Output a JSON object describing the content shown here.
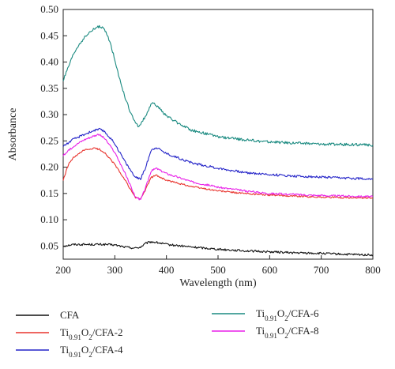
{
  "chart_data": {
    "type": "line",
    "title": "",
    "xlabel": "Wavelength (nm)",
    "ylabel": "Absorbance",
    "xlim": [
      200,
      800
    ],
    "ylim": [
      0.025,
      0.5
    ],
    "xticks": [
      "200",
      "300",
      "400",
      "500",
      "600",
      "700",
      "800"
    ],
    "yticks": [
      "0.05",
      "0.10",
      "0.15",
      "0.20",
      "0.25",
      "0.30",
      "0.35",
      "0.40",
      "0.45",
      "0.50"
    ],
    "grid": false,
    "legend_position": "bottom",
    "series": [
      {
        "name": "CFA",
        "label_parts": [
          [
            "CFA",
            ""
          ]
        ],
        "color": "#111111",
        "noise": 0.002,
        "x": [
          200,
          220,
          240,
          260,
          280,
          300,
          320,
          340,
          350,
          360,
          370,
          380,
          400,
          450,
          500,
          550,
          600,
          650,
          700,
          750,
          800
        ],
        "y": [
          0.05,
          0.053,
          0.053,
          0.053,
          0.053,
          0.052,
          0.048,
          0.046,
          0.048,
          0.055,
          0.058,
          0.057,
          0.053,
          0.048,
          0.044,
          0.041,
          0.039,
          0.037,
          0.036,
          0.034,
          0.033
        ]
      },
      {
        "name": "Ti0.91O2/CFA-2",
        "label_parts": [
          [
            "Ti",
            ""
          ],
          [
            "0.91",
            "sub"
          ],
          [
            "O",
            ""
          ],
          [
            "2",
            "sub"
          ],
          [
            "/CFA-2",
            ""
          ]
        ],
        "color": "#e8332d",
        "noise": 0.0015,
        "x": [
          200,
          210,
          220,
          240,
          260,
          270,
          280,
          300,
          320,
          340,
          350,
          360,
          370,
          380,
          400,
          450,
          500,
          550,
          600,
          650,
          700,
          750,
          800
        ],
        "y": [
          0.175,
          0.205,
          0.218,
          0.232,
          0.236,
          0.234,
          0.228,
          0.205,
          0.175,
          0.142,
          0.14,
          0.158,
          0.18,
          0.185,
          0.175,
          0.163,
          0.155,
          0.15,
          0.147,
          0.145,
          0.143,
          0.142,
          0.141
        ]
      },
      {
        "name": "Ti0.91O2/CFA-4",
        "label_parts": [
          [
            "Ti",
            ""
          ],
          [
            "0.91",
            "sub"
          ],
          [
            "O",
            ""
          ],
          [
            "2",
            "sub"
          ],
          [
            "/CFA-4",
            ""
          ]
        ],
        "color": "#2424c8",
        "noise": 0.0022,
        "x": [
          200,
          220,
          240,
          260,
          270,
          280,
          300,
          320,
          340,
          350,
          360,
          370,
          380,
          400,
          450,
          500,
          550,
          600,
          650,
          700,
          750,
          800
        ],
        "y": [
          0.24,
          0.253,
          0.262,
          0.27,
          0.272,
          0.268,
          0.245,
          0.21,
          0.18,
          0.178,
          0.2,
          0.232,
          0.238,
          0.226,
          0.208,
          0.198,
          0.19,
          0.186,
          0.183,
          0.181,
          0.179,
          0.178
        ]
      },
      {
        "name": "Ti0.91O2/CFA-6",
        "label_parts": [
          [
            "Ti",
            ""
          ],
          [
            "0.91",
            "sub"
          ],
          [
            "O",
            ""
          ],
          [
            "2",
            "sub"
          ],
          [
            "/CFA-6",
            ""
          ]
        ],
        "color": "#1a8a80",
        "noise": 0.0025,
        "x": [
          200,
          210,
          220,
          230,
          240,
          250,
          260,
          270,
          280,
          290,
          300,
          310,
          320,
          330,
          340,
          345,
          350,
          360,
          370,
          375,
          380,
          390,
          400,
          420,
          450,
          500,
          550,
          600,
          650,
          700,
          750,
          800
        ],
        "y": [
          0.365,
          0.39,
          0.415,
          0.432,
          0.445,
          0.455,
          0.463,
          0.468,
          0.462,
          0.44,
          0.405,
          0.365,
          0.332,
          0.305,
          0.283,
          0.278,
          0.282,
          0.298,
          0.318,
          0.322,
          0.318,
          0.308,
          0.298,
          0.285,
          0.27,
          0.258,
          0.252,
          0.248,
          0.246,
          0.244,
          0.243,
          0.242
        ]
      },
      {
        "name": "Ti0.91O2/CFA-8",
        "label_parts": [
          [
            "Ti",
            ""
          ],
          [
            "0.91",
            "sub"
          ],
          [
            "O",
            ""
          ],
          [
            "2",
            "sub"
          ],
          [
            "/CFA-8",
            ""
          ]
        ],
        "color": "#e81ee8",
        "noise": 0.0018,
        "x": [
          200,
          220,
          240,
          260,
          270,
          280,
          300,
          320,
          340,
          350,
          360,
          370,
          380,
          400,
          450,
          500,
          550,
          600,
          650,
          700,
          750,
          800
        ],
        "y": [
          0.222,
          0.24,
          0.252,
          0.26,
          0.262,
          0.255,
          0.228,
          0.188,
          0.143,
          0.138,
          0.162,
          0.192,
          0.198,
          0.188,
          0.172,
          0.162,
          0.155,
          0.15,
          0.148,
          0.146,
          0.145,
          0.144
        ]
      }
    ]
  }
}
